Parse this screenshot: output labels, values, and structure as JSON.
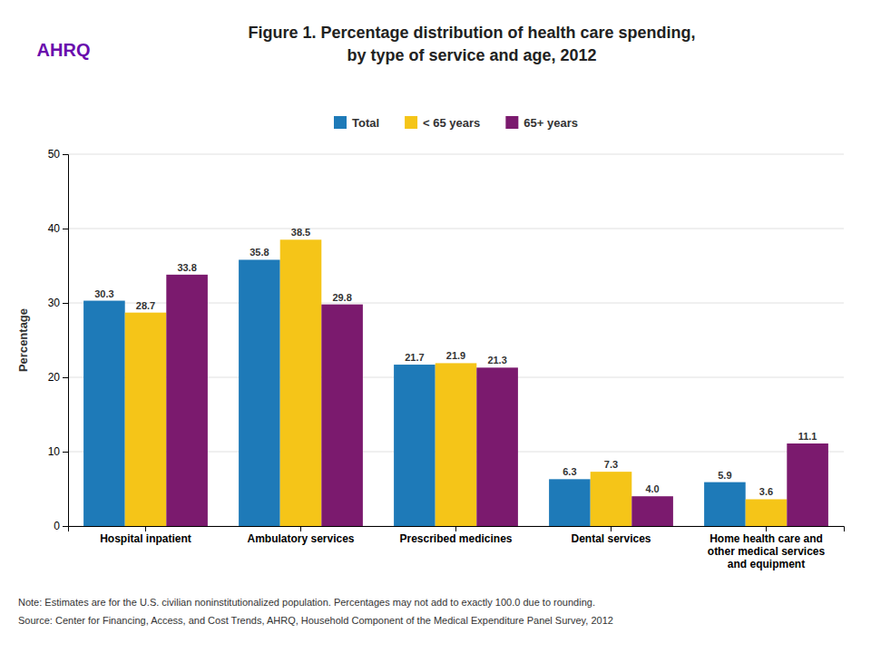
{
  "chart_data": {
    "type": "bar",
    "title": "Figure 1. Percentage distribution of health care spending,\nby type of service and age, 2012",
    "y_label": "Percentage",
    "categories": [
      "Hospital inpatient",
      "Ambulatory services",
      "Prescribed medicines",
      "Dental services",
      "Home health care and\nother medical services\nand equipment"
    ],
    "series": [
      {
        "name": "Total",
        "color": "#1e7ab8",
        "values": [
          30.3,
          35.8,
          21.7,
          6.3,
          5.9
        ]
      },
      {
        "name": "< 65 years",
        "color": "#f5c518",
        "values": [
          28.7,
          38.5,
          21.9,
          7.3,
          3.6
        ]
      },
      {
        "name": "65+ years",
        "color": "#7b1a6e",
        "values": [
          33.8,
          29.8,
          21.3,
          4.0,
          11.1
        ],
        "value_labels": [
          "33.8",
          "29.8",
          "21.3",
          "4.0",
          "11.1"
        ]
      }
    ],
    "ylim": [
      0,
      50
    ],
    "yticks": [
      0,
      10,
      20,
      30,
      40,
      50
    ],
    "grid": true,
    "legend": "top",
    "data_labels": true,
    "annotations": [
      "Note: Estimates are for the U.S. civilian noninstitutionalized population. Percentages may not add to exactly 100.0 due to rounding.",
      "Source: Center for Financing, Access, and Cost Trends, AHRQ, Household Component of the Medical Expenditure Panel Survey, 2012",
      "AHRQ"
    ]
  }
}
